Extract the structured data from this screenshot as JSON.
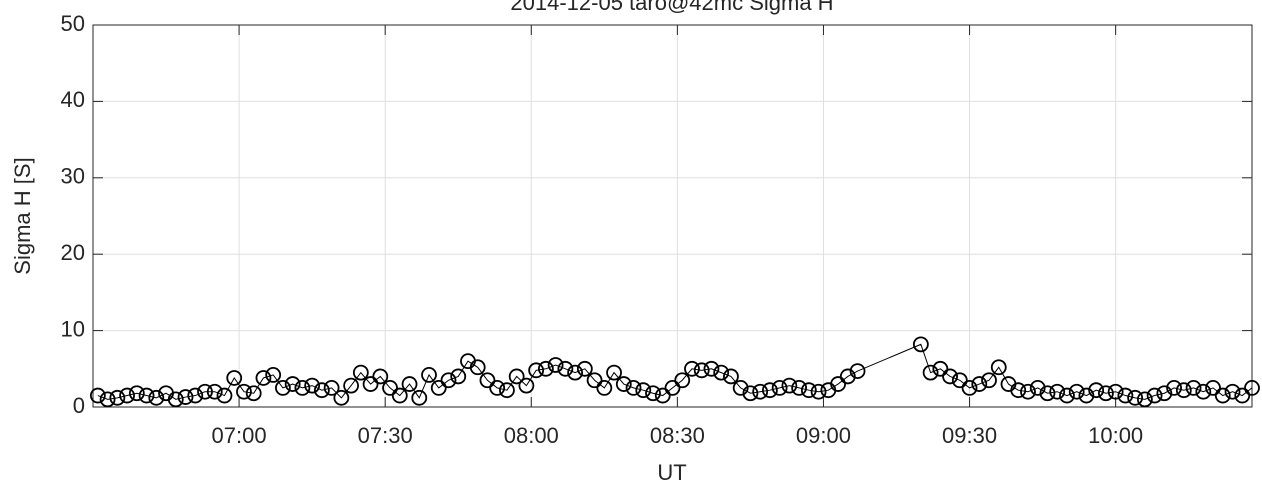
{
  "chart_data": {
    "type": "line",
    "title": "2014-12-05  taro@42mc Sigma H",
    "x_label": "UT",
    "y_label": "Sigma H [S]",
    "xlim": [
      "06:30",
      "10:28"
    ],
    "ylim": [
      0,
      50
    ],
    "xticks": [
      "07:00",
      "07:30",
      "08:00",
      "08:30",
      "09:00",
      "09:30",
      "10:00"
    ],
    "yticks": [
      0,
      10,
      20,
      30,
      40,
      50
    ],
    "grid": true,
    "series": [
      {
        "name": "Sigma H",
        "color": "#000000",
        "x": [
          "06:31",
          "06:33",
          "06:35",
          "06:37",
          "06:39",
          "06:41",
          "06:43",
          "06:45",
          "06:47",
          "06:49",
          "06:51",
          "06:53",
          "06:55",
          "06:57",
          "06:59",
          "07:01",
          "07:03",
          "07:05",
          "07:07",
          "07:09",
          "07:11",
          "07:13",
          "07:15",
          "07:17",
          "07:19",
          "07:21",
          "07:23",
          "07:25",
          "07:27",
          "07:29",
          "07:31",
          "07:33",
          "07:35",
          "07:37",
          "07:39",
          "07:41",
          "07:43",
          "07:45",
          "07:47",
          "07:49",
          "07:51",
          "07:53",
          "07:55",
          "07:57",
          "07:59",
          "08:01",
          "08:03",
          "08:05",
          "08:07",
          "08:09",
          "08:11",
          "08:13",
          "08:15",
          "08:17",
          "08:19",
          "08:21",
          "08:23",
          "08:25",
          "08:27",
          "08:29",
          "08:31",
          "08:33",
          "08:35",
          "08:37",
          "08:39",
          "08:41",
          "08:43",
          "08:45",
          "08:47",
          "08:49",
          "08:51",
          "08:53",
          "08:55",
          "08:57",
          "08:59",
          "09:01",
          "09:03",
          "09:05",
          "09:07",
          "09:20",
          "09:22",
          "09:24",
          "09:26",
          "09:28",
          "09:30",
          "09:32",
          "09:34",
          "09:36",
          "09:38",
          "09:40",
          "09:42",
          "09:44",
          "09:46",
          "09:48",
          "09:50",
          "09:52",
          "09:54",
          "09:56",
          "09:58",
          "10:00",
          "10:02",
          "10:04",
          "10:06",
          "10:08",
          "10:10",
          "10:12",
          "10:14",
          "10:16",
          "10:18",
          "10:20",
          "10:22",
          "10:24",
          "10:26",
          "10:28"
        ],
        "values": [
          1.5,
          1,
          1.2,
          1.5,
          1.8,
          1.5,
          1.2,
          1.8,
          1,
          1.3,
          1.5,
          2,
          2,
          1.5,
          3.8,
          2,
          1.8,
          3.8,
          4.2,
          2.5,
          3,
          2.5,
          2.8,
          2.2,
          2.5,
          1.2,
          2.8,
          4.5,
          3,
          4,
          2.5,
          1.5,
          3,
          1.2,
          4.2,
          2.5,
          3.5,
          4,
          6,
          5.2,
          3.5,
          2.5,
          2.2,
          4,
          2.8,
          4.8,
          5,
          5.5,
          5,
          4.5,
          5,
          3.5,
          2.5,
          4.5,
          3,
          2.5,
          2.2,
          1.8,
          1.5,
          2.5,
          3.5,
          5,
          4.8,
          5,
          4.5,
          4,
          2.5,
          1.8,
          2,
          2.2,
          2.5,
          2.8,
          2.5,
          2.2,
          2,
          2.2,
          3,
          4,
          4.7,
          8.2,
          4.5,
          5,
          4,
          3.5,
          2.5,
          3,
          3.5,
          5.2,
          3,
          2.2,
          2,
          2.5,
          1.8,
          2,
          1.5,
          2,
          1.5,
          2.2,
          1.8,
          2,
          1.5,
          1.2,
          1,
          1.5,
          1.8,
          2.5,
          2.2,
          2.5,
          2,
          2.5,
          1.5,
          2,
          1.5,
          2.5
        ]
      }
    ]
  }
}
